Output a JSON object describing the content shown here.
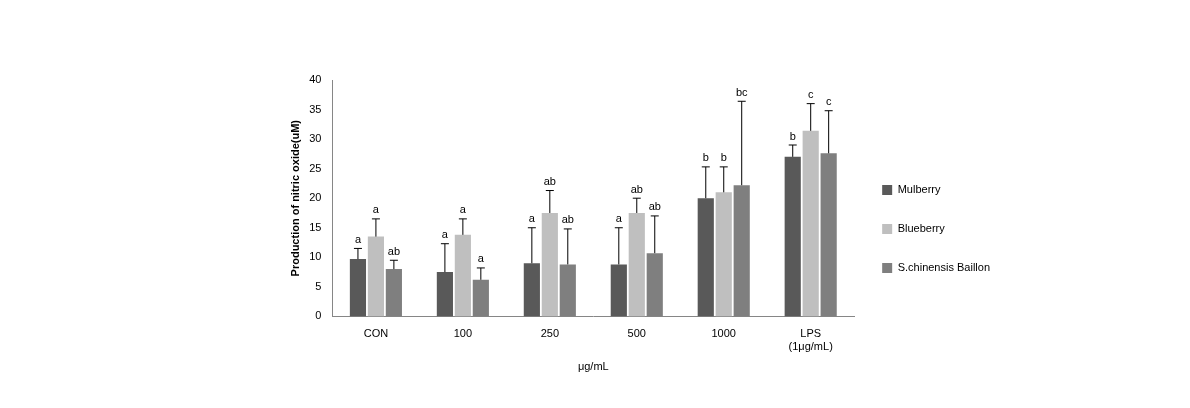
{
  "chart_data": {
    "type": "bar",
    "x_label": "μg/mL",
    "y_label": "Production of nitric oxide(uM)",
    "categories": [
      "CON",
      "100",
      "250",
      "500",
      "1000",
      "LPS\n(1μg/mL)"
    ],
    "series": [
      {
        "name": "Mulberry",
        "color": "#595959",
        "values": [
          9.7,
          7.5,
          9.0,
          8.8,
          20.0,
          27.0
        ],
        "errors": [
          1.8,
          4.8,
          6.0,
          6.2,
          5.3,
          2.0
        ],
        "letters": [
          "a",
          "a",
          "a",
          "a",
          "b",
          "b"
        ]
      },
      {
        "name": "Blueberry",
        "color": "#bfbfbf",
        "values": [
          13.5,
          13.8,
          17.5,
          17.5,
          21.0,
          31.4
        ],
        "errors": [
          3.0,
          2.7,
          3.8,
          2.5,
          4.3,
          4.6
        ],
        "letters": [
          "a",
          "a",
          "ab",
          "ab",
          "b",
          "c"
        ]
      },
      {
        "name": "S.chinensis Baillon",
        "color": "#7f7f7f",
        "values": [
          8.0,
          6.2,
          8.8,
          10.7,
          22.2,
          27.6
        ],
        "errors": [
          1.5,
          2.0,
          6.0,
          6.3,
          14.2,
          7.2
        ],
        "letters": [
          "ab",
          "a",
          "ab",
          "ab",
          "bc",
          "c"
        ]
      }
    ],
    "ylim": [
      0,
      40
    ],
    "yticks": [
      0,
      5,
      10,
      15,
      20,
      25,
      30,
      35,
      40
    ],
    "grid": false,
    "legend": "right"
  }
}
